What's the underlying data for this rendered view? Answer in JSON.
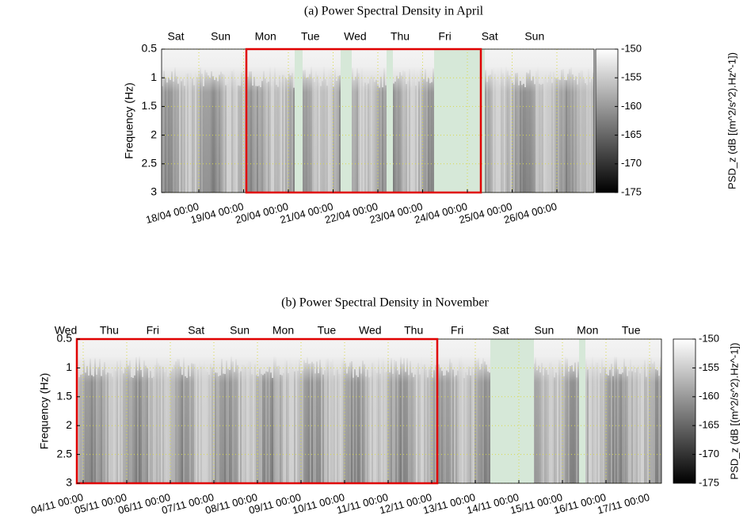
{
  "chart_data": [
    {
      "type": "spectrogram",
      "title": "(a) Power Spectral Density in April",
      "ylabel": "Frequency (Hz)",
      "ylim": [
        0.5,
        3
      ],
      "yticks": [
        0.5,
        1,
        1.5,
        2,
        2.5,
        3
      ],
      "y_reversed": true,
      "grid": true,
      "day_labels": [
        "Sat",
        "Sun",
        "Mon",
        "Tue",
        "Wed",
        "Thu",
        "Fri",
        "Sat",
        "Sun"
      ],
      "xticks": [
        "18/04 00:00",
        "19/04 00:00",
        "20/04 00:00",
        "21/04 00:00",
        "22/04 00:00",
        "23/04 00:00",
        "24/04 00:00",
        "25/04 00:00",
        "26/04 00:00"
      ],
      "colorbar_label": "PSD_z (dB [(m^2/s^2).Hz^-1])",
      "clim": [
        -175,
        -150
      ],
      "cticks": [
        -150,
        -155,
        -160,
        -165,
        -170,
        -175
      ]
    },
    {
      "type": "spectrogram",
      "title": "(b) Power Spectral Density in November",
      "ylabel": "Frequency (Hz)",
      "ylim": [
        0.5,
        3
      ],
      "yticks": [
        0.5,
        1,
        1.5,
        2,
        2.5,
        3
      ],
      "y_reversed": true,
      "grid": true,
      "day_labels": [
        "Wed",
        "Thu",
        "Fri",
        "Sat",
        "Sun",
        "Mon",
        "Tue",
        "Wed",
        "Thu",
        "Fri",
        "Sat",
        "Sun",
        "Mon",
        "Tue"
      ],
      "xticks": [
        "04/11 00:00",
        "05/11 00:00",
        "06/11 00:00",
        "07/11 00:00",
        "08/11 00:00",
        "09/11 00:00",
        "10/11 00:00",
        "11/11 00:00",
        "12/11 00:00",
        "13/11 00:00",
        "14/11 00:00",
        "15/11 00:00",
        "16/11 00:00",
        "17/11 00:00"
      ],
      "colorbar_label": "PSD_z (dB [(m^2/s^2).Hz^-1])",
      "clim": [
        -175,
        -150
      ],
      "cticks": [
        -150,
        -155,
        -160,
        -165,
        -170,
        -175
      ]
    }
  ]
}
